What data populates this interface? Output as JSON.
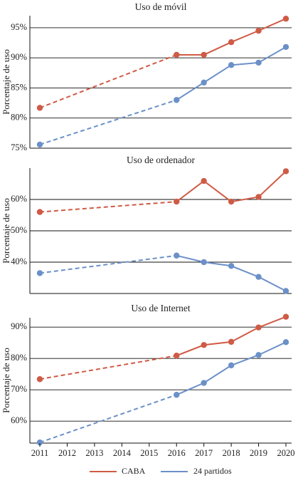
{
  "colors": {
    "caba": "#cf5b45",
    "partidos": "#6b90c8",
    "axis": "#111111",
    "grid": "#111111"
  },
  "legend": {
    "placement": "bottom-center",
    "items": [
      "CABA",
      "24 partidos"
    ]
  },
  "x_axis": {
    "ticks": [
      "2011",
      "2012",
      "2013",
      "2014",
      "2015",
      "2016",
      "2017",
      "2018",
      "2019",
      "2020"
    ]
  },
  "chart_data": [
    {
      "type": "line",
      "title": "Uso de móvil",
      "ylabel": "Porcentaje de uso",
      "ylim": [
        75,
        97
      ],
      "yticks": [
        75,
        80,
        85,
        90,
        95
      ],
      "ytick_labels": [
        "75%",
        "80%",
        "85%",
        "90%",
        "95%"
      ],
      "grid": true,
      "x": [
        2011,
        2016,
        2017,
        2018,
        2019,
        2020
      ],
      "dashed_segment": [
        2011,
        2016
      ],
      "series": [
        {
          "name": "CABA",
          "values": [
            81.7,
            90.5,
            90.5,
            92.6,
            94.5,
            96.5
          ]
        },
        {
          "name": "24 partidos",
          "values": [
            75.6,
            83.0,
            85.9,
            88.8,
            89.2,
            91.8
          ]
        }
      ]
    },
    {
      "type": "line",
      "title": "Uso de ordenador",
      "ylabel": "Porcentaje de uso",
      "ylim": [
        30,
        70
      ],
      "yticks": [
        40,
        50,
        60
      ],
      "ytick_labels": [
        "40%",
        "50%",
        "60%"
      ],
      "grid": true,
      "x": [
        2011,
        2016,
        2017,
        2018,
        2019,
        2020
      ],
      "dashed_segment": [
        2011,
        2016
      ],
      "series": [
        {
          "name": "CABA",
          "values": [
            56.0,
            59.3,
            65.9,
            59.3,
            60.8,
            69.0
          ]
        },
        {
          "name": "24 partidos",
          "values": [
            36.5,
            42.1,
            40.0,
            38.8,
            35.3,
            30.8
          ]
        }
      ]
    },
    {
      "type": "line",
      "title": "Uso de Internet",
      "ylabel": "Porcentaje de uso",
      "ylim": [
        53,
        93
      ],
      "yticks": [
        60,
        70,
        80,
        90
      ],
      "ytick_labels": [
        "60%",
        "70%",
        "80%",
        "90%"
      ],
      "grid": true,
      "x": [
        2011,
        2016,
        2017,
        2018,
        2019,
        2020
      ],
      "dashed_segment": [
        2011,
        2016
      ],
      "series": [
        {
          "name": "CABA",
          "values": [
            73.4,
            80.9,
            84.3,
            85.3,
            89.9,
            93.3
          ]
        },
        {
          "name": "24 partidos",
          "values": [
            53.2,
            68.4,
            72.2,
            77.8,
            81.1,
            85.2
          ]
        }
      ]
    }
  ]
}
